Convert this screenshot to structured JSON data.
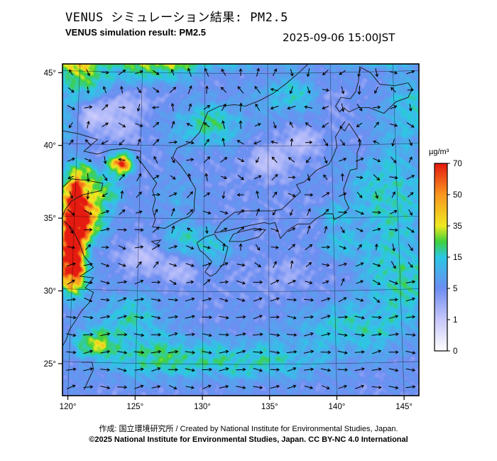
{
  "header": {
    "title_jp": "VENUS シミュレーション結果: PM2.5",
    "title_en": "VENUS simulation result: PM2.5",
    "timestamp": "2025-09-06 15:00JST"
  },
  "footer": {
    "credit": "作成:  国立環境研究所 / Created by National Institute for Environmental Studies, Japan.",
    "license": "©2025 National Institute for Environmental Studies, Japan. CC BY-NC 4.0 International"
  },
  "chart_data": {
    "type": "heatmap",
    "title": "VENUS simulation result: PM2.5",
    "subtitle": "2025-09-06 15:00JST",
    "units": "µg/m³",
    "projection": {
      "lon_min": 119.6,
      "lon_max": 146.1,
      "lat_min": 22.8,
      "lat_max": 45.6
    },
    "axes": {
      "lon_ticks": [
        120,
        125,
        130,
        135,
        140,
        145
      ],
      "lon_tick_labels": [
        "120°",
        "125°",
        "130°",
        "135°",
        "140°",
        "145°"
      ],
      "lat_ticks": [
        25,
        30,
        35,
        40,
        45
      ],
      "lat_tick_labels": [
        "25°",
        "30°",
        "35°",
        "40°",
        "45°"
      ],
      "grid": true
    },
    "colorbar": {
      "title": "µg/m³",
      "tick_values": [
        0,
        1,
        5,
        15,
        35,
        50,
        70
      ],
      "tick_labels": [
        "0",
        "1",
        "5",
        "15",
        "35",
        "50",
        "70"
      ],
      "stops": [
        {
          "v": 0,
          "color": "#ffffff"
        },
        {
          "v": 1,
          "color": "#c8c8fb"
        },
        {
          "v": 5,
          "color": "#6e8ef2"
        },
        {
          "v": 15,
          "color": "#2cc8e6"
        },
        {
          "v": 25,
          "color": "#3fd13c"
        },
        {
          "v": 35,
          "color": "#f0ea20"
        },
        {
          "v": 50,
          "color": "#fa9820"
        },
        {
          "v": 70,
          "color": "#e51a10"
        }
      ],
      "position": "right"
    },
    "field": {
      "base": 5.2,
      "blob_format": [
        "lon",
        "lat",
        "sigma_lon",
        "sigma_lat",
        "amplitude_ugm3"
      ],
      "blobs": [
        [
          120.6,
          36.2,
          0.9,
          1.6,
          85
        ],
        [
          120.4,
          33.8,
          0.8,
          1.6,
          80
        ],
        [
          120.3,
          31.5,
          0.9,
          1.4,
          75
        ],
        [
          121.6,
          34.8,
          1.1,
          1.2,
          35
        ],
        [
          123.9,
          38.7,
          0.75,
          0.65,
          55
        ],
        [
          122.6,
          36.8,
          1.3,
          1.0,
          18
        ],
        [
          121.5,
          38.2,
          0.9,
          0.7,
          14
        ],
        [
          127.5,
          46.3,
          5.0,
          0.9,
          30
        ],
        [
          136.0,
          46.5,
          4.0,
          0.7,
          22
        ],
        [
          120.7,
          45.8,
          1.8,
          0.9,
          26
        ],
        [
          143.0,
          46.2,
          2.5,
          0.7,
          18
        ],
        [
          121.5,
          44.3,
          2.2,
          1.1,
          14
        ],
        [
          126.5,
          45.2,
          2.5,
          1.0,
          12
        ],
        [
          130.5,
          41.4,
          2.4,
          1.4,
          13
        ],
        [
          136.5,
          43.5,
          2.2,
          1.3,
          9
        ],
        [
          143.8,
          36.5,
          2.6,
          3.2,
          12
        ],
        [
          144.8,
          31.0,
          2.6,
          2.6,
          12
        ],
        [
          145.5,
          42.5,
          2.0,
          2.0,
          10
        ],
        [
          141.5,
          27.5,
          4.0,
          1.6,
          11
        ],
        [
          133.5,
          25.2,
          5.0,
          1.2,
          13
        ],
        [
          126.5,
          25.5,
          3.5,
          1.3,
          13
        ],
        [
          124.5,
          28.0,
          2.5,
          1.5,
          12
        ],
        [
          121.9,
          26.4,
          1.3,
          0.8,
          26
        ],
        [
          128.8,
          33.6,
          1.7,
          1.0,
          9
        ],
        [
          130.8,
          33.0,
          1.5,
          1.0,
          8
        ],
        [
          139.8,
          35.4,
          1.0,
          0.8,
          10
        ],
        [
          128.2,
          36.8,
          1.3,
          1.6,
          5
        ],
        [
          119.9,
          42.0,
          1.0,
          1.6,
          8
        ],
        [
          140.5,
          33.2,
          1.6,
          1.0,
          7
        ],
        [
          123.6,
          43.1,
          2.6,
          1.7,
          -3.6
        ],
        [
          121.5,
          41.9,
          1.5,
          1.0,
          -3.0
        ],
        [
          135.0,
          38.8,
          1.9,
          1.2,
          -3.8
        ],
        [
          137.4,
          40.3,
          1.5,
          1.0,
          -3.2
        ],
        [
          139.5,
          43.2,
          1.2,
          0.9,
          -2.6
        ],
        [
          125.5,
          32.3,
          1.8,
          1.1,
          -3.4
        ],
        [
          128.2,
          31.3,
          1.6,
          1.0,
          -2.8
        ],
        [
          121.8,
          38.9,
          0.7,
          0.5,
          -3.0
        ],
        [
          136.5,
          31.3,
          2.8,
          1.2,
          -1.8
        ],
        [
          124.0,
          40.8,
          1.2,
          0.8,
          -2.5
        ],
        [
          138.8,
          36.2,
          0.8,
          0.6,
          -2.2
        ],
        [
          142.0,
          39.8,
          1.0,
          1.2,
          -2.0
        ]
      ]
    },
    "wind": {
      "base_u": 0.35,
      "base_v": 0.05,
      "jet_lat": 26.5,
      "jet_width": 4,
      "jet_amp": 1.6,
      "wobble": 0.45,
      "vortex_format": [
        "lon",
        "lat",
        "strength",
        "radius"
      ],
      "vortices": [
        [
          123.5,
          36.5,
          1.1,
          3.5
        ],
        [
          136.0,
          47.0,
          -1.8,
          6.0
        ],
        [
          141.0,
          33.0,
          -0.8,
          4.0
        ],
        [
          128.5,
          42.5,
          0.5,
          3.0
        ]
      ],
      "arrow_grid": {
        "cols": 21,
        "rows": 19
      }
    },
    "coastlines": [
      {
        "name": "mainland-asia",
        "points": [
          [
            119.6,
            41.0
          ],
          [
            120.8,
            40.8
          ],
          [
            122.2,
            40.4
          ],
          [
            121.2,
            39.6
          ],
          [
            122.2,
            39.4
          ],
          [
            123.2,
            39.7
          ],
          [
            124.2,
            39.8
          ],
          [
            124.7,
            39.7
          ],
          [
            125.4,
            39.6
          ],
          [
            125.4,
            38.9
          ],
          [
            126.2,
            37.9
          ],
          [
            126.6,
            37.4
          ],
          [
            126.3,
            36.9
          ],
          [
            126.5,
            36.3
          ],
          [
            126.3,
            35.6
          ],
          [
            126.5,
            34.9
          ],
          [
            126.3,
            34.4
          ],
          [
            127.2,
            34.3
          ],
          [
            127.8,
            34.6
          ],
          [
            128.4,
            34.9
          ],
          [
            129.0,
            35.1
          ],
          [
            129.4,
            35.5
          ],
          [
            129.4,
            36.1
          ],
          [
            129.5,
            37.0
          ],
          [
            129.0,
            37.8
          ],
          [
            128.4,
            38.6
          ],
          [
            127.8,
            39.2
          ],
          [
            128.1,
            39.8
          ],
          [
            129.1,
            40.2
          ],
          [
            129.8,
            40.9
          ],
          [
            130.4,
            42.3
          ],
          [
            131.3,
            42.7
          ],
          [
            132.4,
            42.8
          ],
          [
            133.2,
            42.7
          ],
          [
            134.3,
            43.1
          ],
          [
            135.3,
            43.6
          ],
          [
            136.3,
            44.3
          ],
          [
            137.3,
            45.1
          ],
          [
            138.2,
            45.9
          ]
        ]
      },
      {
        "name": "shandong",
        "points": [
          [
            119.6,
            37.1
          ],
          [
            120.3,
            37.7
          ],
          [
            121.4,
            37.6
          ],
          [
            122.6,
            37.4
          ],
          [
            122.5,
            36.9
          ],
          [
            121.1,
            36.6
          ],
          [
            120.3,
            36.2
          ],
          [
            119.8,
            35.6
          ],
          [
            119.6,
            35.1
          ]
        ]
      },
      {
        "name": "china-east-coast",
        "points": [
          [
            119.7,
            34.8
          ],
          [
            120.3,
            34.3
          ],
          [
            120.9,
            33.2
          ],
          [
            121.2,
            32.4
          ],
          [
            121.9,
            31.6
          ],
          [
            120.9,
            31.0
          ],
          [
            121.9,
            30.9
          ],
          [
            121.3,
            30.2
          ],
          [
            121.9,
            29.9
          ],
          [
            121.6,
            29.2
          ],
          [
            121.0,
            28.6
          ],
          [
            120.6,
            28.0
          ],
          [
            120.1,
            27.3
          ],
          [
            119.9,
            26.7
          ],
          [
            119.6,
            26.2
          ]
        ]
      },
      {
        "name": "taiwan",
        "points": [
          [
            121.0,
            25.1
          ],
          [
            121.8,
            25.1
          ],
          [
            121.9,
            24.6
          ],
          [
            121.5,
            23.8
          ],
          [
            121.2,
            23.2
          ]
        ]
      },
      {
        "name": "kyushu",
        "points": [
          [
            129.6,
            33.3
          ],
          [
            130.2,
            33.7
          ],
          [
            130.9,
            33.9
          ],
          [
            131.1,
            33.6
          ],
          [
            131.9,
            33.0
          ],
          [
            131.6,
            31.9
          ],
          [
            131.0,
            31.2
          ],
          [
            130.6,
            31.0
          ],
          [
            130.2,
            31.3
          ],
          [
            130.7,
            32.0
          ],
          [
            130.2,
            32.5
          ],
          [
            129.8,
            32.8
          ],
          [
            129.6,
            33.3
          ]
        ]
      },
      {
        "name": "shikoku",
        "points": [
          [
            132.0,
            33.4
          ],
          [
            133.0,
            33.4
          ],
          [
            134.2,
            33.7
          ],
          [
            134.7,
            34.2
          ],
          [
            133.9,
            34.3
          ],
          [
            133.0,
            34.1
          ],
          [
            132.3,
            33.9
          ],
          [
            132.0,
            33.4
          ]
        ]
      },
      {
        "name": "honshu",
        "points": [
          [
            130.9,
            34.0
          ],
          [
            131.7,
            34.1
          ],
          [
            132.6,
            34.3
          ],
          [
            133.5,
            34.5
          ],
          [
            134.6,
            34.7
          ],
          [
            135.0,
            34.6
          ],
          [
            135.4,
            34.7
          ],
          [
            135.8,
            33.6
          ],
          [
            136.4,
            34.2
          ],
          [
            137.1,
            34.6
          ],
          [
            138.0,
            34.6
          ],
          [
            138.5,
            35.0
          ],
          [
            139.1,
            35.3
          ],
          [
            139.7,
            35.3
          ],
          [
            139.8,
            34.9
          ],
          [
            140.4,
            35.2
          ],
          [
            140.9,
            35.7
          ],
          [
            140.6,
            36.3
          ],
          [
            140.5,
            37.0
          ],
          [
            141.0,
            38.3
          ],
          [
            141.5,
            38.4
          ],
          [
            141.5,
            39.5
          ],
          [
            141.8,
            40.2
          ],
          [
            141.4,
            40.8
          ],
          [
            140.9,
            41.5
          ],
          [
            140.6,
            41.0
          ],
          [
            140.3,
            41.2
          ],
          [
            139.9,
            40.6
          ],
          [
            140.0,
            39.9
          ],
          [
            139.7,
            39.2
          ],
          [
            139.4,
            38.7
          ],
          [
            138.5,
            38.3
          ],
          [
            137.6,
            37.5
          ],
          [
            137.0,
            37.3
          ],
          [
            137.3,
            36.8
          ],
          [
            136.7,
            36.3
          ],
          [
            135.9,
            35.6
          ],
          [
            135.2,
            35.5
          ],
          [
            134.3,
            35.5
          ],
          [
            133.3,
            35.5
          ],
          [
            132.4,
            35.4
          ],
          [
            131.4,
            34.7
          ],
          [
            130.9,
            34.0
          ]
        ]
      },
      {
        "name": "hokkaido",
        "points": [
          [
            140.5,
            42.6
          ],
          [
            140.2,
            42.3
          ],
          [
            139.9,
            42.7
          ],
          [
            140.3,
            43.3
          ],
          [
            141.0,
            43.2
          ],
          [
            141.4,
            43.7
          ],
          [
            141.6,
            44.4
          ],
          [
            141.7,
            45.4
          ],
          [
            142.5,
            45.0
          ],
          [
            143.2,
            44.2
          ],
          [
            144.3,
            44.1
          ],
          [
            145.3,
            44.3
          ],
          [
            145.6,
            43.9
          ],
          [
            145.3,
            43.3
          ],
          [
            144.4,
            43.0
          ],
          [
            143.5,
            42.2
          ],
          [
            142.4,
            42.6
          ],
          [
            141.6,
            42.6
          ],
          [
            140.9,
            42.3
          ],
          [
            140.5,
            42.6
          ]
        ]
      },
      {
        "name": "jeju",
        "points": [
          [
            126.2,
            33.4
          ],
          [
            126.9,
            33.5
          ],
          [
            126.6,
            33.2
          ],
          [
            126.2,
            33.4
          ]
        ]
      }
    ]
  }
}
